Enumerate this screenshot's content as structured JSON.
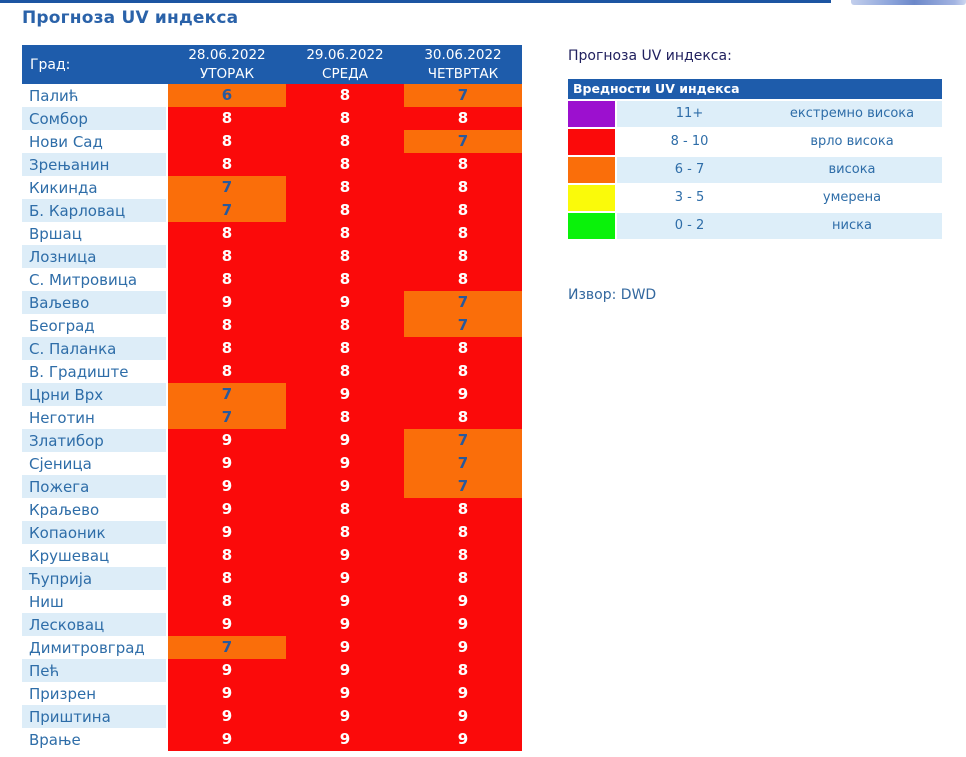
{
  "page": {
    "title": "Прогноза UV индекса"
  },
  "table": {
    "city_header": "Град:",
    "columns": [
      {
        "date": "28.06.2022",
        "day": "УТОРАК"
      },
      {
        "date": "29.06.2022",
        "day": "СРЕДА"
      },
      {
        "date": "30.06.2022",
        "day": "ЧЕТВРТАК"
      }
    ],
    "rows": [
      {
        "city": "Палић",
        "values": [
          6,
          8,
          7
        ],
        "levels": [
          "orange",
          "red",
          "orange"
        ]
      },
      {
        "city": "Сомбор",
        "values": [
          8,
          8,
          8
        ],
        "levels": [
          "red",
          "red",
          "red"
        ]
      },
      {
        "city": "Нови Сад",
        "values": [
          8,
          8,
          7
        ],
        "levels": [
          "red",
          "red",
          "orange"
        ]
      },
      {
        "city": "Зрењанин",
        "values": [
          8,
          8,
          8
        ],
        "levels": [
          "red",
          "red",
          "red"
        ]
      },
      {
        "city": "Кикинда",
        "values": [
          7,
          8,
          8
        ],
        "levels": [
          "orange",
          "red",
          "red"
        ]
      },
      {
        "city": "Б. Карловац",
        "values": [
          7,
          8,
          8
        ],
        "levels": [
          "orange",
          "red",
          "red"
        ]
      },
      {
        "city": "Вршац",
        "values": [
          8,
          8,
          8
        ],
        "levels": [
          "red",
          "red",
          "red"
        ]
      },
      {
        "city": "Лозница",
        "values": [
          8,
          8,
          8
        ],
        "levels": [
          "red",
          "red",
          "red"
        ]
      },
      {
        "city": "С. Митровица",
        "values": [
          8,
          8,
          8
        ],
        "levels": [
          "red",
          "red",
          "red"
        ]
      },
      {
        "city": "Ваљево",
        "values": [
          9,
          9,
          7
        ],
        "levels": [
          "red",
          "red",
          "orange"
        ]
      },
      {
        "city": "Београд",
        "values": [
          8,
          8,
          7
        ],
        "levels": [
          "red",
          "red",
          "orange"
        ]
      },
      {
        "city": "С. Паланка",
        "values": [
          8,
          8,
          8
        ],
        "levels": [
          "red",
          "red",
          "red"
        ]
      },
      {
        "city": "В. Градиште",
        "values": [
          8,
          8,
          8
        ],
        "levels": [
          "red",
          "red",
          "red"
        ]
      },
      {
        "city": "Црни Врх",
        "values": [
          7,
          9,
          9
        ],
        "levels": [
          "orange",
          "red",
          "red"
        ]
      },
      {
        "city": "Неготин",
        "values": [
          7,
          8,
          8
        ],
        "levels": [
          "orange",
          "red",
          "red"
        ]
      },
      {
        "city": "Златибор",
        "values": [
          9,
          9,
          7
        ],
        "levels": [
          "red",
          "red",
          "orange"
        ]
      },
      {
        "city": "Сјеница",
        "values": [
          9,
          9,
          7
        ],
        "levels": [
          "red",
          "red",
          "orange"
        ]
      },
      {
        "city": "Пожега",
        "values": [
          9,
          9,
          7
        ],
        "levels": [
          "red",
          "red",
          "orange"
        ]
      },
      {
        "city": "Краљево",
        "values": [
          9,
          8,
          8
        ],
        "levels": [
          "red",
          "red",
          "red"
        ]
      },
      {
        "city": "Копаоник",
        "values": [
          9,
          8,
          8
        ],
        "levels": [
          "red",
          "red",
          "red"
        ]
      },
      {
        "city": "Крушевац",
        "values": [
          8,
          9,
          8
        ],
        "levels": [
          "red",
          "red",
          "red"
        ]
      },
      {
        "city": "Ћуприја",
        "values": [
          8,
          9,
          8
        ],
        "levels": [
          "red",
          "red",
          "red"
        ]
      },
      {
        "city": "Ниш",
        "values": [
          8,
          9,
          9
        ],
        "levels": [
          "red",
          "red",
          "red"
        ]
      },
      {
        "city": "Лесковац",
        "values": [
          9,
          9,
          9
        ],
        "levels": [
          "red",
          "red",
          "red"
        ]
      },
      {
        "city": "Димитровград",
        "values": [
          7,
          9,
          9
        ],
        "levels": [
          "orange",
          "red",
          "red"
        ]
      },
      {
        "city": "Пећ",
        "values": [
          9,
          9,
          8
        ],
        "levels": [
          "red",
          "red",
          "red"
        ]
      },
      {
        "city": "Призрен",
        "values": [
          9,
          9,
          9
        ],
        "levels": [
          "red",
          "red",
          "red"
        ]
      },
      {
        "city": "Приштина",
        "values": [
          9,
          9,
          9
        ],
        "levels": [
          "red",
          "red",
          "red"
        ]
      },
      {
        "city": "Врање",
        "values": [
          9,
          9,
          9
        ],
        "levels": [
          "red",
          "red",
          "red"
        ]
      }
    ]
  },
  "legend": {
    "title": "Прогноза UV индекса:",
    "header": "Вредности UV индекса",
    "rows": [
      {
        "color": "#9c10cf",
        "range": "11+",
        "label": "екстремно висока"
      },
      {
        "color": "#fb0a0a",
        "range": "8 - 10",
        "label": "врло висока"
      },
      {
        "color": "#fa6e0a",
        "range": "6 - 7",
        "label": "висока"
      },
      {
        "color": "#fafa0a",
        "range": "3 - 5",
        "label": "умерена"
      },
      {
        "color": "#0af20a",
        "range": "0 - 2",
        "label": "ниска"
      }
    ],
    "source": "Извор: DWD"
  },
  "colors": {
    "header_bg": "#1e5cab",
    "cell_red": "#fb0a0a",
    "cell_orange": "#fa6e0a",
    "value_on_red": "#ffffff",
    "value_on_orange": "#28599c",
    "stripe": "#ddedf8",
    "city_text": "#2e6da8",
    "title_text": "#2a62a9"
  }
}
